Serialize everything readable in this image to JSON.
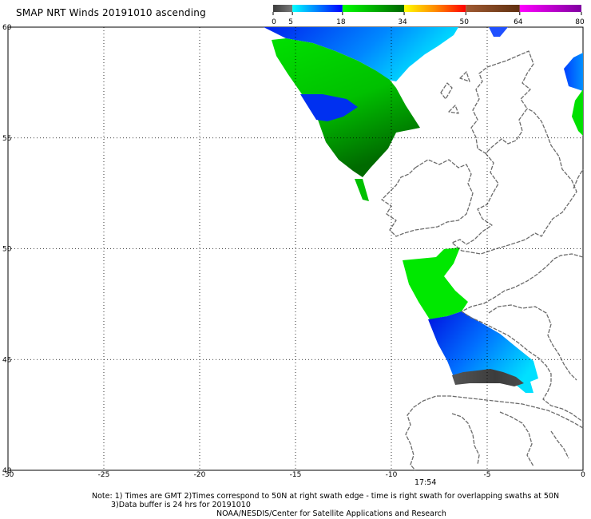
{
  "header": {
    "title": "SMAP NRT Winds 20191010 ascending"
  },
  "colorbar": {
    "ticks": [
      "0",
      "5",
      "18",
      "34",
      "50",
      "64",
      "80"
    ],
    "segments": [
      {
        "from": 0,
        "to": 5,
        "colors": [
          "#3c3c3c",
          "#7a7a7a"
        ]
      },
      {
        "from": 5,
        "to": 18,
        "colors": [
          "#00ffff",
          "#0000ff"
        ]
      },
      {
        "from": 18,
        "to": 34,
        "colors": [
          "#00ff00",
          "#006400"
        ]
      },
      {
        "from": 34,
        "to": 50,
        "colors": [
          "#ffff00",
          "#ff8c00",
          "#ff0000"
        ]
      },
      {
        "from": 50,
        "to": 64,
        "colors": [
          "#a05a32",
          "#603010"
        ]
      },
      {
        "from": 64,
        "to": 80,
        "colors": [
          "#ff00ff",
          "#8000a0"
        ]
      }
    ]
  },
  "map": {
    "lon_ticks": [
      "-30",
      "-25",
      "-20",
      "-15",
      "-10",
      "-5",
      "0"
    ],
    "lat_ticks": [
      "60",
      "55",
      "50",
      "45",
      "40"
    ],
    "lon_range": [
      -30,
      0
    ],
    "lat_range": [
      40,
      60
    ],
    "grid": "dotted",
    "swath_time": "17:54"
  },
  "footer": {
    "note_line1": "Note: 1) Times are GMT 2)Times correspond to 50N at right swath edge - time is right swath for overlapping swaths at 50N",
    "note_line2": "3)Data buffer is 24 hrs for 20191010",
    "credit": "NOAA/NESDIS/Center for Satellite Applications and Research"
  }
}
